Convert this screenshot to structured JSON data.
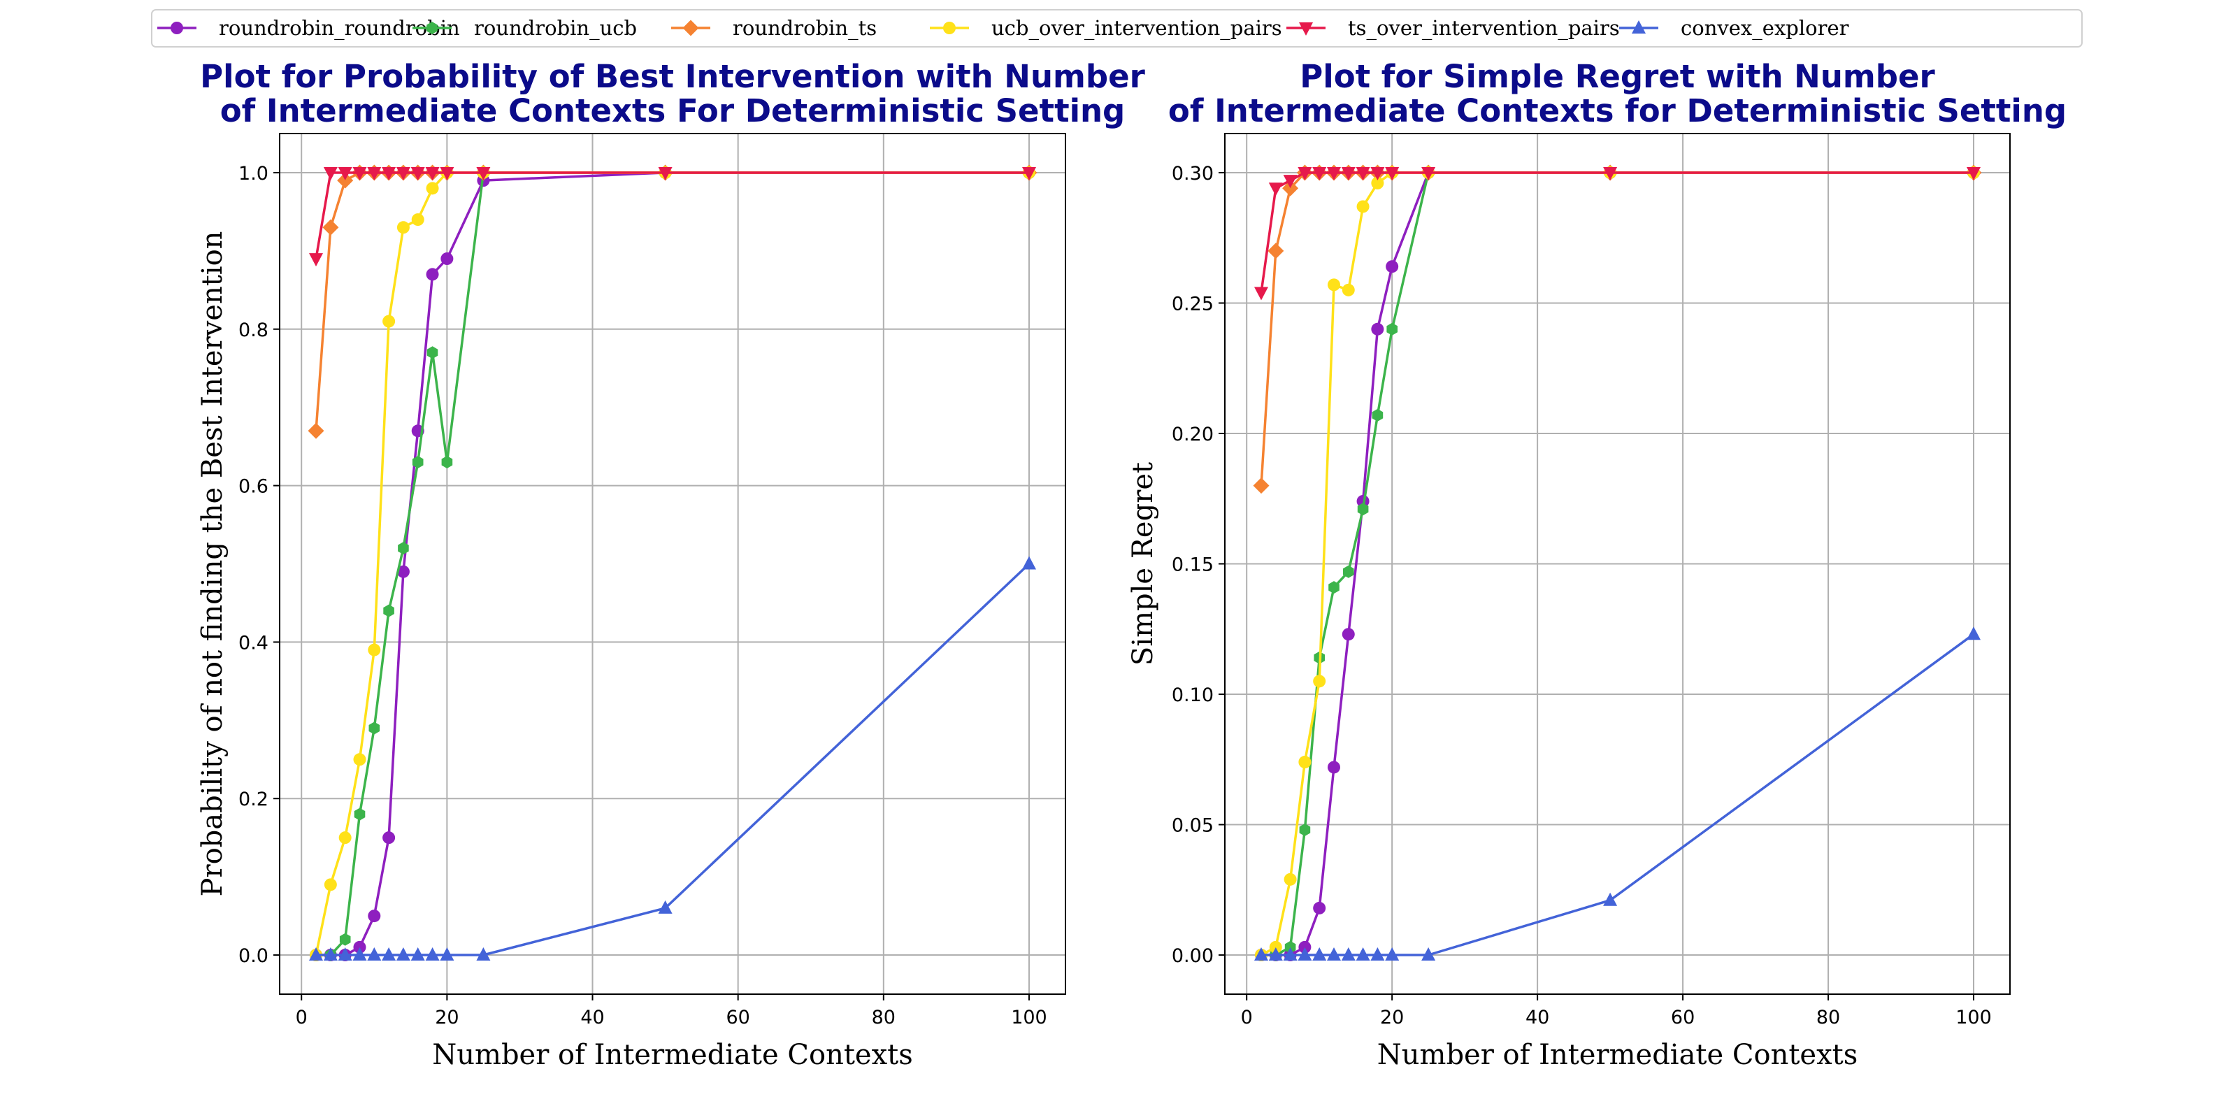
{
  "legend": [
    {
      "name": "roundrobin_roundrobin",
      "color": "#8e1fbf",
      "marker": "circle"
    },
    {
      "name": "roundrobin_ucb",
      "color": "#3cb44b",
      "marker": "hexagon"
    },
    {
      "name": "roundrobin_ts",
      "color": "#f58231",
      "marker": "diamond"
    },
    {
      "name": "ucb_over_intervention_pairs",
      "color": "#ffe119",
      "marker": "circle"
    },
    {
      "name": "ts_over_intervention_pairs",
      "color": "#e6194b",
      "marker": "triangle-down"
    },
    {
      "name": "convex_explorer",
      "color": "#4363d8",
      "marker": "triangle-up"
    }
  ],
  "chart_data": [
    {
      "type": "line",
      "title": [
        "Plot for Probability of Best Intervention with Number",
        "of Intermediate Contexts For Deterministic Setting"
      ],
      "xlabel": "Number of Intermediate Contexts",
      "ylabel": "Probability of not finding the Best Intervention",
      "xlim": [
        -3,
        105
      ],
      "ylim": [
        -0.05,
        1.05
      ],
      "xticks": [
        0,
        20,
        40,
        60,
        80,
        100
      ],
      "yticks": [
        0.0,
        0.2,
        0.4,
        0.6,
        0.8,
        1.0
      ],
      "ytick_labels": [
        "0.0",
        "0.2",
        "0.4",
        "0.6",
        "0.8",
        "1.0"
      ],
      "grid": true,
      "series": [
        {
          "name": "roundrobin_roundrobin",
          "x": [
            2,
            4,
            6,
            8,
            10,
            12,
            14,
            16,
            18,
            20,
            25,
            50,
            100
          ],
          "y": [
            0.0,
            0.0,
            0.0,
            0.01,
            0.05,
            0.15,
            0.49,
            0.67,
            0.87,
            0.89,
            0.99,
            1.0,
            1.0
          ]
        },
        {
          "name": "roundrobin_ucb",
          "x": [
            2,
            4,
            6,
            8,
            10,
            12,
            14,
            16,
            18,
            20,
            25,
            50,
            100
          ],
          "y": [
            0.0,
            0.0,
            0.02,
            0.18,
            0.29,
            0.44,
            0.52,
            0.63,
            0.77,
            0.63,
            1.0,
            1.0,
            1.0
          ]
        },
        {
          "name": "roundrobin_ts",
          "x": [
            2,
            4,
            6,
            8,
            10,
            12,
            14,
            16,
            18,
            20,
            25,
            50,
            100
          ],
          "y": [
            0.67,
            0.93,
            0.99,
            1.0,
            1.0,
            1.0,
            1.0,
            1.0,
            1.0,
            1.0,
            1.0,
            1.0,
            1.0
          ]
        },
        {
          "name": "ucb_over_intervention_pairs",
          "x": [
            2,
            4,
            6,
            8,
            10,
            12,
            14,
            16,
            18,
            20,
            25,
            50,
            100
          ],
          "y": [
            0.0,
            0.09,
            0.15,
            0.25,
            0.39,
            0.81,
            0.93,
            0.94,
            0.98,
            1.0,
            1.0,
            1.0,
            1.0
          ]
        },
        {
          "name": "ts_over_intervention_pairs",
          "x": [
            2,
            4,
            6,
            8,
            10,
            12,
            14,
            16,
            18,
            20,
            25,
            50,
            100
          ],
          "y": [
            0.89,
            1.0,
            1.0,
            1.0,
            1.0,
            1.0,
            1.0,
            1.0,
            1.0,
            1.0,
            1.0,
            1.0,
            1.0
          ]
        },
        {
          "name": "convex_explorer",
          "x": [
            2,
            4,
            6,
            8,
            10,
            12,
            14,
            16,
            18,
            20,
            25,
            50,
            100
          ],
          "y": [
            0.0,
            0.0,
            0.0,
            0.0,
            0.0,
            0.0,
            0.0,
            0.0,
            0.0,
            0.0,
            0.0,
            0.06,
            0.5
          ]
        }
      ]
    },
    {
      "type": "line",
      "title": [
        "Plot for Simple Regret with Number",
        "of Intermediate Contexts for Deterministic Setting"
      ],
      "xlabel": "Number of Intermediate Contexts",
      "ylabel": "Simple Regret",
      "xlim": [
        -3,
        105
      ],
      "ylim": [
        -0.015,
        0.315
      ],
      "xticks": [
        0,
        20,
        40,
        60,
        80,
        100
      ],
      "yticks": [
        0.0,
        0.05,
        0.1,
        0.15,
        0.2,
        0.25,
        0.3
      ],
      "ytick_labels": [
        "0.00",
        "0.05",
        "0.10",
        "0.15",
        "0.20",
        "0.25",
        "0.30"
      ],
      "grid": true,
      "series": [
        {
          "name": "roundrobin_roundrobin",
          "x": [
            2,
            4,
            6,
            8,
            10,
            12,
            14,
            16,
            18,
            20,
            25,
            50,
            100
          ],
          "y": [
            0.0,
            0.0,
            0.0,
            0.003,
            0.018,
            0.072,
            0.123,
            0.174,
            0.24,
            0.264,
            0.3,
            0.3,
            0.3
          ]
        },
        {
          "name": "roundrobin_ucb",
          "x": [
            2,
            4,
            6,
            8,
            10,
            12,
            14,
            16,
            18,
            20,
            25,
            50,
            100
          ],
          "y": [
            0.0,
            0.0,
            0.003,
            0.048,
            0.114,
            0.141,
            0.147,
            0.171,
            0.207,
            0.24,
            0.3,
            0.3,
            0.3
          ]
        },
        {
          "name": "roundrobin_ts",
          "x": [
            2,
            4,
            6,
            8,
            10,
            12,
            14,
            16,
            18,
            20,
            25,
            50,
            100
          ],
          "y": [
            0.18,
            0.27,
            0.294,
            0.3,
            0.3,
            0.3,
            0.3,
            0.3,
            0.3,
            0.3,
            0.3,
            0.3,
            0.3
          ]
        },
        {
          "name": "ucb_over_intervention_pairs",
          "x": [
            2,
            4,
            6,
            8,
            10,
            12,
            14,
            16,
            18,
            20,
            25,
            50,
            100
          ],
          "y": [
            0.0,
            0.003,
            0.029,
            0.074,
            0.105,
            0.257,
            0.255,
            0.287,
            0.296,
            0.3,
            0.3,
            0.3,
            0.3
          ]
        },
        {
          "name": "ts_over_intervention_pairs",
          "x": [
            2,
            4,
            6,
            8,
            10,
            12,
            14,
            16,
            18,
            20,
            25,
            50,
            100
          ],
          "y": [
            0.254,
            0.294,
            0.297,
            0.3,
            0.3,
            0.3,
            0.3,
            0.3,
            0.3,
            0.3,
            0.3,
            0.3,
            0.3
          ]
        },
        {
          "name": "convex_explorer",
          "x": [
            2,
            4,
            6,
            8,
            10,
            12,
            14,
            16,
            18,
            20,
            25,
            50,
            100
          ],
          "y": [
            0.0,
            0.0,
            0.0,
            0.0,
            0.0,
            0.0,
            0.0,
            0.0,
            0.0,
            0.0,
            0.0,
            0.021,
            0.123
          ]
        }
      ]
    }
  ]
}
